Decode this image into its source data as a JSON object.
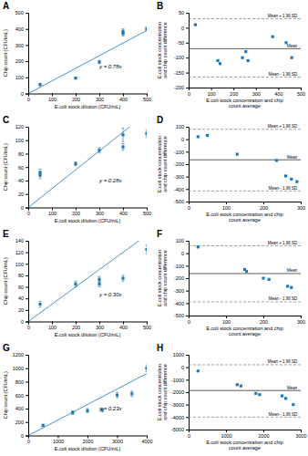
{
  "chart_data": [
    {
      "type": "scatter",
      "title": "A",
      "x_label": "E.coli stock dilution (CFU/mL)",
      "y_label": "Chip count (CFU/mL)",
      "marker": "square",
      "x": [
        50,
        200,
        300,
        400,
        400,
        500
      ],
      "values": [
        55,
        95,
        195,
        370,
        385,
        400
      ],
      "errors": [
        8,
        5,
        10,
        15,
        15,
        10
      ],
      "fit_line": {
        "x": [
          0,
          500
        ],
        "values": [
          0,
          390
        ]
      },
      "annotations": [
        "y = 0.78x"
      ],
      "xlim": [
        0,
        500
      ],
      "ylim": [
        0,
        500
      ],
      "xticks": [
        0,
        100,
        200,
        300,
        400,
        500
      ],
      "yticks": [
        0,
        100,
        200,
        300,
        400,
        500
      ]
    },
    {
      "type": "scatter",
      "title": "B",
      "x_label": "E.coli stock concentration and chip\ncount average",
      "y_label": "E.coli stock concentration\nand chip count difference",
      "marker": "square",
      "x": [
        30,
        130,
        140,
        240,
        255,
        265,
        375,
        435,
        460
      ],
      "values": [
        10,
        -110,
        -120,
        -100,
        -80,
        -110,
        -30,
        -50,
        -100
      ],
      "reference_lines": [
        {
          "value": -70,
          "label": "Mean",
          "line_style": "solid"
        },
        {
          "value": 30,
          "label": "Mean + 1.96 SD",
          "line_style": "dashed"
        },
        {
          "value": -165,
          "label": "Mean - 1.96 SD",
          "line_style": "dashed"
        }
      ],
      "xlim": [
        0,
        500
      ],
      "ylim": [
        -200,
        50
      ],
      "xticks": [
        0,
        100,
        200,
        300,
        400,
        500
      ],
      "yticks": [
        -200,
        -150,
        -100,
        -50,
        0,
        50
      ]
    },
    {
      "type": "scatter",
      "title": "C",
      "x_label": "E.coli stock dilution (CFU/mL)",
      "y_label": "Chip count (CFU/mL)",
      "marker": "square",
      "x": [
        50,
        50,
        200,
        300,
        400,
        400,
        500
      ],
      "values": [
        48,
        52,
        65,
        85,
        90,
        108,
        110
      ],
      "errors": [
        5,
        5,
        3,
        4,
        5,
        10,
        5
      ],
      "fit_line": {
        "x": [
          0,
          500
        ],
        "values": [
          0,
          140
        ]
      },
      "annotations": [
        "y = 0.28x"
      ],
      "xlim": [
        0,
        500
      ],
      "ylim": [
        0,
        120
      ],
      "xticks": [
        0,
        100,
        200,
        300,
        400,
        500
      ],
      "yticks": [
        0,
        20,
        40,
        60,
        80,
        100,
        120
      ]
    },
    {
      "type": "scatter",
      "title": "D",
      "x_label": "E.coli stock concentration and chip\ncount average",
      "y_label": "E.coli stock concentration\nand chip count difference",
      "marker": "square",
      "x": [
        25,
        50,
        130,
        235,
        260,
        275,
        290
      ],
      "values": [
        20,
        30,
        -120,
        -170,
        -295,
        -320,
        -340
      ],
      "reference_lines": [
        {
          "value": -165,
          "label": "Mean",
          "line_style": "solid"
        },
        {
          "value": 80,
          "label": "Mean + 1.96 SD",
          "line_style": "dashed"
        },
        {
          "value": -415,
          "label": "Mean - 1.96 SD",
          "line_style": "dashed"
        }
      ],
      "xlim": [
        0,
        300
      ],
      "ylim": [
        -500,
        100
      ],
      "xticks": [
        0,
        100,
        200,
        300
      ],
      "yticks": [
        -500,
        -400,
        -300,
        -200,
        -100,
        0,
        100
      ]
    },
    {
      "type": "scatter",
      "title": "E",
      "x_label": "E.coli stock dilution (CFU/mL)",
      "y_label": "Chip count (CFU/mL)",
      "marker": "square",
      "x": [
        50,
        200,
        300,
        300,
        400,
        500
      ],
      "values": [
        30,
        65,
        65,
        73,
        75,
        125
      ],
      "errors": [
        5,
        5,
        5,
        5,
        5,
        8
      ],
      "fit_line": {
        "x": [
          0,
          500
        ],
        "values": [
          0,
          150
        ]
      },
      "annotations": [
        "y = 0.30x"
      ],
      "xlim": [
        0,
        500
      ],
      "ylim": [
        0,
        140
      ],
      "xticks": [
        0,
        100,
        200,
        300,
        400,
        500
      ],
      "yticks": [
        0,
        20,
        40,
        60,
        80,
        100,
        120,
        140
      ]
    },
    {
      "type": "scatter",
      "title": "F",
      "x_label": "E.coli stock concentration and chip\ncount average",
      "y_label": "E.coli stock concentration\nand chip count difference",
      "marker": "square",
      "x": [
        25,
        150,
        155,
        200,
        215,
        265,
        275
      ],
      "values": [
        50,
        -130,
        -145,
        -200,
        -210,
        -265,
        -275
      ],
      "reference_lines": [
        {
          "value": -163,
          "label": "Mean",
          "line_style": "solid"
        },
        {
          "value": 60,
          "label": "Mean + 1.96 SD",
          "line_style": "dashed"
        },
        {
          "value": -390,
          "label": "Mean - 1.96 SD",
          "line_style": "dashed"
        }
      ],
      "xlim": [
        0,
        300
      ],
      "ylim": [
        -500,
        100
      ],
      "xticks": [
        0,
        100,
        200,
        300
      ],
      "yticks": [
        -500,
        -400,
        -300,
        -200,
        -100,
        0,
        100
      ]
    },
    {
      "type": "scatter",
      "title": "G",
      "x_label": "E.coli stock dilution (CFU/mL)",
      "y_label": "Chip count (CFU/mL)",
      "marker": "square",
      "x": [
        500,
        1500,
        2000,
        2500,
        3000,
        3500,
        4000
      ],
      "values": [
        150,
        340,
        370,
        380,
        600,
        620,
        1000
      ],
      "errors": [
        15,
        25,
        30,
        30,
        40,
        40,
        50
      ],
      "fit_line": {
        "x": [
          0,
          4000
        ],
        "values": [
          0,
          920
        ]
      },
      "annotations": [
        "y = 0.23x"
      ],
      "xlim": [
        0,
        4000
      ],
      "ylim": [
        0,
        1200
      ],
      "xticks": [
        0,
        1000,
        2000,
        3000,
        4000
      ],
      "yticks": [
        0,
        200,
        400,
        600,
        800,
        1000,
        1200
      ]
    },
    {
      "type": "scatter",
      "title": "H",
      "x_label": "E.coli stock concentration and chip\ncount average",
      "y_label": "E.coli stock concentration\nand chip count difference",
      "marker": "square",
      "x": [
        250,
        1300,
        1400,
        1800,
        1900,
        2500,
        2600,
        2800
      ],
      "values": [
        -300,
        -1400,
        -1500,
        -2100,
        -2200,
        -2300,
        -2500,
        -3000
      ],
      "reference_lines": [
        {
          "value": -1869,
          "label": "Mean",
          "line_style": "solid"
        },
        {
          "value": 200,
          "label": "Mean + 1.96 SD",
          "line_style": "dashed"
        },
        {
          "value": -4000,
          "label": "Mean - 1.96 SD",
          "line_style": "dashed"
        }
      ],
      "xlim": [
        0,
        3000
      ],
      "ylim": [
        -5000,
        1000
      ],
      "xticks": [
        0,
        1000,
        2000,
        3000
      ],
      "yticks": [
        -5000,
        -4000,
        -3000,
        -2000,
        -1000,
        0,
        1000
      ]
    }
  ]
}
